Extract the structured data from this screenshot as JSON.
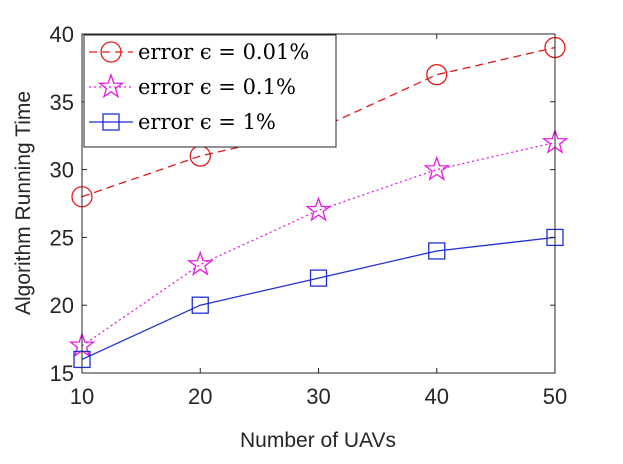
{
  "chart_data": {
    "type": "line",
    "title": "",
    "xlabel": "Number of UAVs",
    "ylabel": "Algorithm Running Time",
    "x": [
      10,
      20,
      30,
      40,
      50
    ],
    "xlim": [
      10,
      50
    ],
    "ylim": [
      15,
      40
    ],
    "xticks": [
      "10",
      "20",
      "30",
      "40",
      "50"
    ],
    "yticks": [
      "15",
      "20",
      "25",
      "30",
      "35",
      "40"
    ],
    "grid": false,
    "legend_position": "top-left",
    "series": [
      {
        "name": "error ϵ = 0.01%",
        "values": [
          28,
          31,
          33,
          37,
          39
        ],
        "color": "#e31a1c",
        "marker": "circle",
        "line": "dashed"
      },
      {
        "name": "error ϵ = 0.1%",
        "values": [
          17,
          23,
          27,
          30,
          32
        ],
        "color": "#e619e6",
        "marker": "star",
        "line": "dotted"
      },
      {
        "name": "error ϵ = 1%",
        "values": [
          16,
          20,
          22,
          24,
          25
        ],
        "color": "#1f2fd1",
        "marker": "square",
        "line": "solid"
      }
    ]
  }
}
